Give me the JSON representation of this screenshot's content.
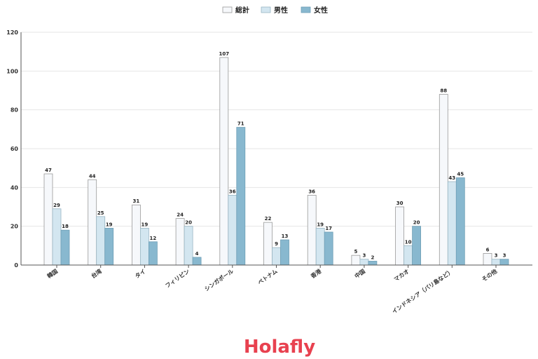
{
  "chart_data": {
    "type": "bar",
    "categories": [
      "韓国",
      "台湾",
      "タイ",
      "フィリピン",
      "シンガポール",
      "ベトナム",
      "香港",
      "中国",
      "マカオ",
      "インドネシア（バリ島など）",
      "その他"
    ],
    "series": [
      {
        "name": "総計",
        "values": [
          47,
          44,
          31,
          24,
          107,
          22,
          36,
          5,
          30,
          88,
          6
        ],
        "color": "#f6f8fb",
        "stroke": "#9a9a9a"
      },
      {
        "name": "男性",
        "values": [
          29,
          25,
          19,
          20,
          36,
          9,
          19,
          3,
          10,
          43,
          3
        ],
        "color": "#d3e6f0",
        "stroke": "#9ab6c4"
      },
      {
        "name": "女性",
        "values": [
          18,
          19,
          12,
          4,
          71,
          13,
          17,
          2,
          20,
          45,
          3
        ],
        "color": "#88b8cf",
        "stroke": "#6f9fb6"
      }
    ],
    "yticks": [
      0,
      20,
      40,
      60,
      80,
      100,
      120
    ],
    "ylim": [
      0,
      120
    ],
    "grid": true,
    "legend_position": "top-center",
    "title": "",
    "xlabel": "",
    "ylabel": ""
  },
  "brand": {
    "logo_text": "Holafly",
    "color": "#e8414f"
  }
}
